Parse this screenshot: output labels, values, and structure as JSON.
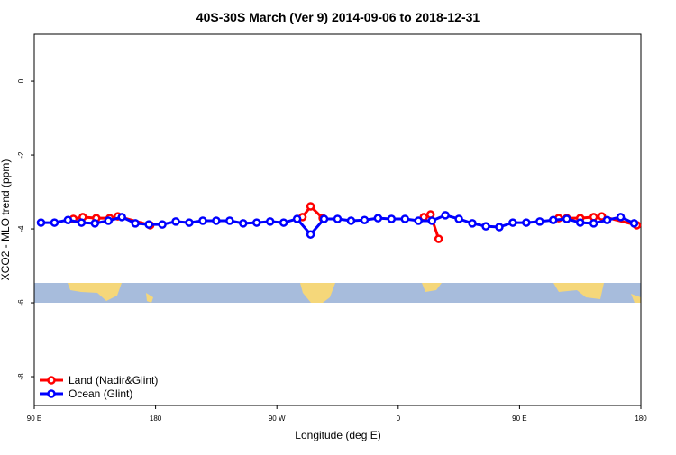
{
  "chart_data": {
    "type": "line",
    "title": "40S-30S March (Ver 9)   2014-09-06 to 2018-12-31",
    "x_label": "Longitude (deg E)",
    "y_label": "XCO2 - MLO trend (ppm)",
    "xlim": [
      90,
      540
    ],
    "xticks": [
      {
        "value": 90,
        "label": "90 E"
      },
      {
        "value": 180,
        "label": "180"
      },
      {
        "value": 270,
        "label": "90 W"
      },
      {
        "value": 360,
        "label": "0"
      },
      {
        "value": 450,
        "label": "90 E"
      },
      {
        "value": 540,
        "label": "180"
      }
    ],
    "ylim": [
      -8.78,
      1.27
    ],
    "yticks": [
      0,
      -2,
      -4,
      -6,
      -8
    ],
    "legend": "bottom-left",
    "series": [
      {
        "name": "Land (Nadir&Glint)",
        "color": "#ff0000",
        "x": [
          119,
          126,
          136,
          146,
          152,
          176,
          230,
          289,
          295,
          304,
          340,
          379,
          384,
          390,
          430,
          479,
          485,
          495,
          505,
          511,
          537
        ],
        "values": [
          -3.73,
          -3.68,
          -3.71,
          -3.71,
          -3.66,
          -3.9,
          null,
          -3.68,
          -3.39,
          -3.71,
          null,
          -3.68,
          -3.61,
          -4.27,
          null,
          -3.71,
          -3.71,
          -3.71,
          -3.68,
          -3.66,
          -3.9
        ]
      },
      {
        "name": "Ocean (Glint)",
        "color": "#0000ff",
        "x": [
          95,
          105,
          115,
          125,
          135,
          145,
          155,
          165,
          175,
          185,
          195,
          205,
          215,
          225,
          235,
          245,
          255,
          265,
          275,
          285,
          295,
          305,
          315,
          325,
          335,
          345,
          355,
          365,
          375,
          385,
          395,
          405,
          415,
          425,
          435,
          445,
          455,
          465,
          475,
          485,
          495,
          505,
          515,
          525,
          535
        ],
        "values": [
          -3.83,
          -3.83,
          -3.76,
          -3.83,
          -3.85,
          -3.78,
          -3.68,
          -3.85,
          -3.88,
          -3.88,
          -3.8,
          -3.83,
          -3.78,
          -3.78,
          -3.78,
          -3.85,
          -3.83,
          -3.8,
          -3.83,
          -3.73,
          -4.15,
          -3.73,
          -3.73,
          -3.78,
          -3.76,
          -3.71,
          -3.73,
          -3.73,
          -3.78,
          -3.78,
          -3.63,
          -3.73,
          -3.85,
          -3.93,
          -3.95,
          -3.83,
          -3.83,
          -3.8,
          -3.76,
          -3.73,
          -3.83,
          -3.85,
          -3.76,
          -3.68,
          -3.85
        ]
      }
    ]
  }
}
